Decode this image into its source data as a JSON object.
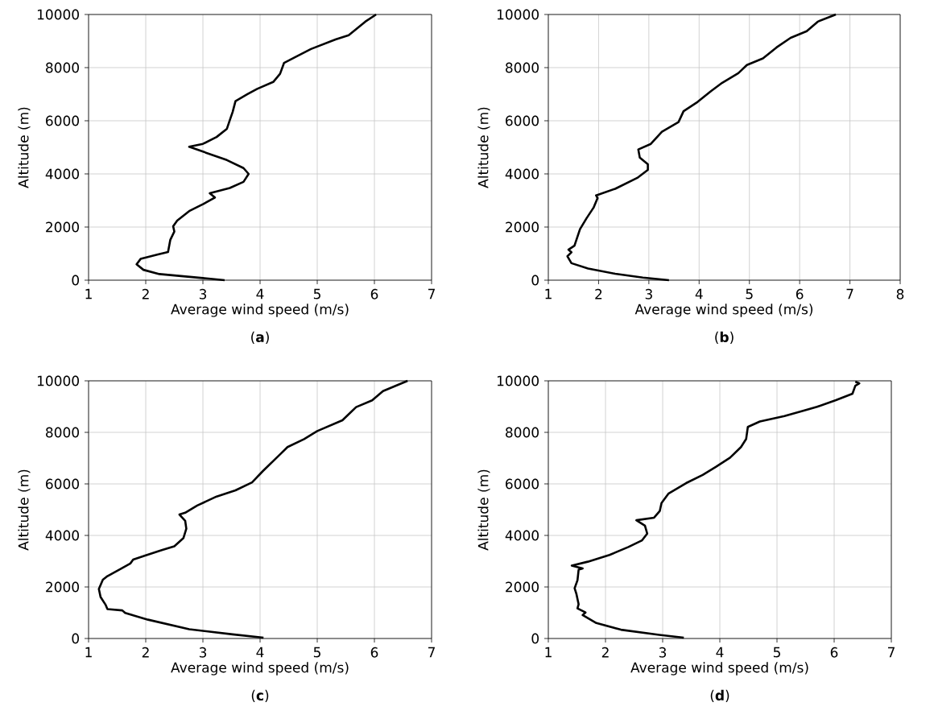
{
  "chart_data": [
    {
      "type": "line",
      "xlabel": "Average wind speed (m/s)",
      "ylabel": "Altitude (m)",
      "xlim": [
        1,
        7
      ],
      "ylim": [
        0,
        10000
      ],
      "xticks": [
        1,
        2,
        3,
        4,
        5,
        6,
        7
      ],
      "yticks": [
        0,
        2000,
        4000,
        6000,
        8000,
        10000
      ],
      "grid": true,
      "annotations": [
        "(**a**)"
      ],
      "series": [
        {
          "color": "#000000",
          "x": [
            3.38,
            3.0,
            2.24,
            1.96,
            1.84,
            1.91,
            2.2,
            2.39,
            2.43,
            2.5,
            2.48,
            2.55,
            2.76,
            3.0,
            3.21,
            3.12,
            3.47,
            3.71,
            3.8,
            3.71,
            3.42,
            2.76,
            3.0,
            3.24,
            3.42,
            3.47,
            3.52,
            3.57,
            3.78,
            3.95,
            4.23,
            4.35,
            4.42,
            4.61,
            4.89,
            5.32,
            5.55,
            5.84,
            6.03
          ],
          "values": [
            0,
            80,
            230,
            390,
            600,
            800,
            960,
            1060,
            1520,
            1830,
            2030,
            2240,
            2600,
            2860,
            3110,
            3270,
            3470,
            3700,
            4000,
            4220,
            4520,
            5020,
            5130,
            5390,
            5700,
            6020,
            6330,
            6740,
            7000,
            7200,
            7460,
            7770,
            8180,
            8390,
            8700,
            9060,
            9220,
            9730,
            10000
          ]
        }
      ]
    },
    {
      "type": "line",
      "xlabel": "Average wind speed (m/s)",
      "ylabel": "Altitude (m)",
      "xlim": [
        1,
        8
      ],
      "ylim": [
        0,
        10000
      ],
      "xticks": [
        1,
        2,
        3,
        4,
        5,
        6,
        7,
        8
      ],
      "yticks": [
        0,
        2000,
        4000,
        6000,
        8000,
        10000
      ],
      "grid": true,
      "annotations": [
        "(**b**)"
      ],
      "series": [
        {
          "color": "#000000",
          "x": [
            3.4,
            2.88,
            2.33,
            1.79,
            1.46,
            1.38,
            1.46,
            1.4,
            1.52,
            1.63,
            1.76,
            1.9,
            1.98,
            1.95,
            2.33,
            2.77,
            2.98,
            2.98,
            2.82,
            2.79,
            3.04,
            3.26,
            3.59,
            3.69,
            3.97,
            4.24,
            4.46,
            4.78,
            4.95,
            5.27,
            5.54,
            5.82,
            6.14,
            6.36,
            6.72
          ],
          "values": [
            0,
            100,
            240,
            440,
            640,
            900,
            1050,
            1150,
            1300,
            1920,
            2330,
            2730,
            3090,
            3190,
            3440,
            3850,
            4150,
            4360,
            4610,
            4920,
            5130,
            5590,
            5950,
            6360,
            6710,
            7120,
            7430,
            7790,
            8100,
            8350,
            8760,
            9120,
            9370,
            9730,
            10000
          ]
        }
      ]
    },
    {
      "type": "line",
      "xlabel": "Average wind speed (m/s)",
      "ylabel": "Altitude (m)",
      "xlim": [
        1,
        7
      ],
      "ylim": [
        0,
        10000
      ],
      "xticks": [
        1,
        2,
        3,
        4,
        5,
        6,
        7
      ],
      "yticks": [
        0,
        2000,
        4000,
        6000,
        8000,
        10000
      ],
      "grid": true,
      "annotations": [
        "(**c**)"
      ],
      "series": [
        {
          "color": "#000000",
          "x": [
            4.06,
            3.52,
            2.76,
            2.04,
            1.64,
            1.59,
            1.33,
            1.3,
            1.21,
            1.18,
            1.25,
            1.33,
            1.56,
            1.73,
            1.78,
            1.99,
            2.28,
            2.5,
            2.66,
            2.71,
            2.69,
            2.59,
            2.69,
            2.9,
            3.24,
            3.57,
            3.86,
            4.05,
            4.36,
            4.48,
            4.77,
            5.0,
            5.44,
            5.68,
            5.96,
            6.15,
            6.58
          ],
          "values": [
            30,
            160,
            360,
            730,
            990,
            1090,
            1140,
            1300,
            1610,
            1920,
            2280,
            2420,
            2700,
            2910,
            3060,
            3220,
            3430,
            3580,
            3900,
            4260,
            4570,
            4810,
            4880,
            5160,
            5510,
            5750,
            6060,
            6500,
            7170,
            7430,
            7740,
            8050,
            8470,
            8980,
            9240,
            9600,
            10000
          ]
        }
      ]
    },
    {
      "type": "line",
      "xlabel": "Average wind speed (m/s)",
      "ylabel": "Altitude (m)",
      "xlim": [
        1,
        7
      ],
      "ylim": [
        0,
        10000
      ],
      "xticks": [
        1,
        2,
        3,
        4,
        5,
        6,
        7
      ],
      "yticks": [
        0,
        2000,
        4000,
        6000,
        8000,
        10000
      ],
      "grid": true,
      "annotations": [
        "(**d**)"
      ],
      "series": [
        {
          "color": "#000000",
          "x": [
            3.37,
            2.94,
            2.27,
            1.84,
            1.6,
            1.65,
            1.51,
            1.53,
            1.49,
            1.46,
            1.51,
            1.53,
            1.6,
            1.41,
            1.69,
            2.07,
            2.4,
            2.64,
            2.73,
            2.69,
            2.54,
            2.85,
            2.95,
            2.98,
            3.1,
            3.41,
            3.7,
            3.93,
            4.18,
            4.37,
            4.46,
            4.49,
            4.7,
            5.13,
            5.7,
            6.03,
            6.32,
            6.37,
            6.44,
            6.37
          ],
          "values": [
            30,
            140,
            340,
            600,
            910,
            1010,
            1170,
            1330,
            1740,
            1950,
            2260,
            2670,
            2720,
            2830,
            2980,
            3240,
            3550,
            3810,
            4070,
            4380,
            4590,
            4690,
            4950,
            5260,
            5620,
            6030,
            6350,
            6660,
            7020,
            7430,
            7740,
            8210,
            8420,
            8630,
            8990,
            9250,
            9500,
            9810,
            9900,
            9970
          ]
        }
      ]
    }
  ]
}
